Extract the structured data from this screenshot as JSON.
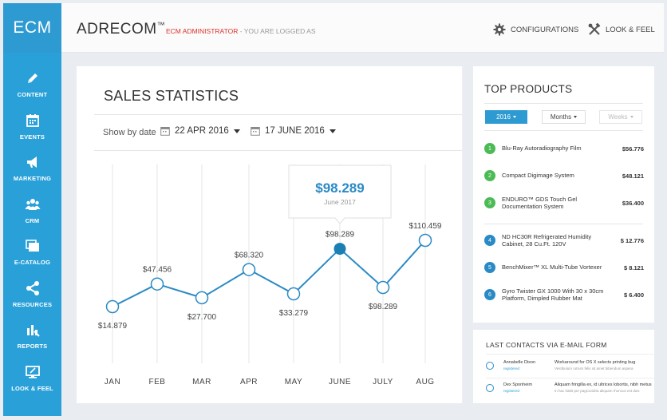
{
  "brand": "ECM",
  "header": {
    "title": "ADRECOM",
    "trademark": "™",
    "role": "ECM ADMINISTRATOR",
    "status": " - YOU ARE LOGGED AS",
    "configurations": "CONFIGURATIONS",
    "look_feel": "LOOK & FEEL"
  },
  "sidebar": {
    "items": [
      {
        "label": "CONTENT",
        "icon": "pencil-icon"
      },
      {
        "label": "EVENTS",
        "icon": "calendar-icon"
      },
      {
        "label": "MARKETING",
        "icon": "megaphone-icon"
      },
      {
        "label": "CRM",
        "icon": "users-icon"
      },
      {
        "label": "E-CATALOG",
        "icon": "catalog-icon"
      },
      {
        "label": "RESOURCES",
        "icon": "share-icon"
      },
      {
        "label": "REPORTS",
        "icon": "reports-icon"
      },
      {
        "label": "LOOK & FEEL",
        "icon": "screen-icon"
      }
    ]
  },
  "sales": {
    "title": "SALES STATISTICS",
    "show_by": "Show by date",
    "date_from": "22 APR 2016",
    "date_to": "17 JUNE 2016"
  },
  "chart_data": {
    "type": "line",
    "title": "SALES STATISTICS",
    "categories": [
      "JAN",
      "FEB",
      "MAR",
      "APR",
      "MAY",
      "JUNE",
      "JULY",
      "AUG"
    ],
    "values": [
      14.879,
      47.456,
      27.7,
      68.32,
      33.279,
      98.289,
      98.289,
      110.459
    ],
    "data_labels": [
      "$14.879",
      "$47.456",
      "$27.700",
      "$68.320",
      "$33.279",
      "$98.289",
      "$98.289",
      "$110.459"
    ],
    "label_position": [
      "below",
      "above",
      "below",
      "above",
      "below",
      "above",
      "below",
      "above"
    ],
    "highlight_index": 5,
    "tooltip": {
      "value": "$98.289",
      "label": "June 2017"
    },
    "color": "#2a8ac5"
  },
  "top_products": {
    "title": "TOP PRODUCTS",
    "filters": [
      "2016",
      "Months",
      "Weeks"
    ],
    "items": [
      {
        "rank": "1",
        "name": "Blu-Ray Autoradiography Film",
        "price": "$56.776",
        "color": "#4cbb55"
      },
      {
        "rank": "2",
        "name": "Compact Digimage System",
        "price": "$48.121",
        "color": "#4cbb55"
      },
      {
        "rank": "3",
        "name": "ENDURO™ GDS Touch Gel Documentation System",
        "price": "$36.400",
        "color": "#4cbb55"
      },
      {
        "rank": "4",
        "name": "ND HC30R Refrigerated Humidity Cabinet, 28 Cu.Ft. 120V",
        "price": "$ 12.776",
        "color": "#2a8ac5"
      },
      {
        "rank": "5",
        "name": "BenchMixer™ XL Multi-Tube Vortexer",
        "price": "$ 8.121",
        "color": "#2a8ac5"
      },
      {
        "rank": "6",
        "name": "Gyro Twister GX 1000 With 30 x 30cm Platform, Dimpled Rubber Mat",
        "price": "$ 6.400",
        "color": "#2a8ac5"
      }
    ]
  },
  "contacts": {
    "title": "LAST CONTACTS VIA E-MAIL FORM",
    "items": [
      {
        "name": "Annabelle Dixon",
        "tag": "registered",
        "subject": "Workaround for OS X selects printing bug",
        "snippet": "Vestibulum rutrum felis sit amet bibendum aspera"
      },
      {
        "name": "Dex Sponheim",
        "tag": "registered",
        "subject": "Aliquam fringilla ex, id ultrices lobortis, nibh metus",
        "snippet": "In hac habit per pagCuridria aliquam rhoncus est duis"
      }
    ]
  }
}
